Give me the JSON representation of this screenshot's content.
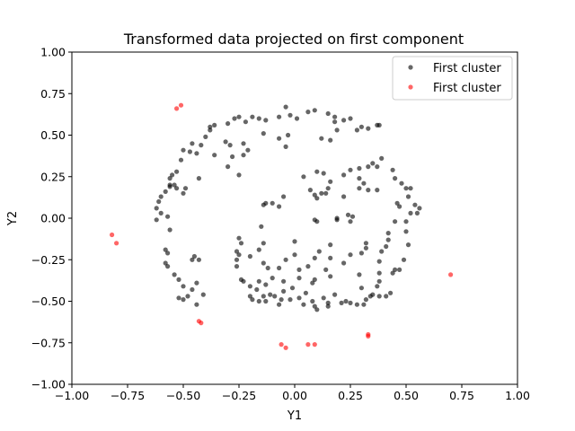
{
  "chart_data": {
    "type": "scatter",
    "title": "Transformed data projected on first component",
    "xlabel": "Y1",
    "ylabel": "Y2",
    "xlim": [
      -1.0,
      1.0
    ],
    "ylim": [
      -1.0,
      1.0
    ],
    "xticks": [
      "−1.00",
      "−0.75",
      "−0.50",
      "−0.25",
      "0.00",
      "0.25",
      "0.50",
      "0.75",
      "1.00"
    ],
    "yticks": [
      "−1.00",
      "−0.75",
      "−0.50",
      "−0.25",
      "0.00",
      "0.25",
      "0.50",
      "0.75",
      "1.00"
    ],
    "grid": false,
    "legend": "top-right",
    "series": [
      {
        "name": "First cluster",
        "color": "#000000",
        "points": [
          [
            -0.3,
            0.57
          ],
          [
            -0.27,
            0.6
          ],
          [
            -0.25,
            0.61
          ],
          [
            -0.22,
            0.58
          ],
          [
            -0.19,
            0.61
          ],
          [
            -0.16,
            0.6
          ],
          [
            -0.13,
            0.59
          ],
          [
            -0.07,
            0.61
          ],
          [
            -0.04,
            0.67
          ],
          [
            -0.02,
            0.62
          ],
          [
            0.01,
            0.6
          ],
          [
            0.06,
            0.64
          ],
          [
            0.09,
            0.65
          ],
          [
            0.15,
            0.63
          ],
          [
            0.18,
            0.61
          ],
          [
            0.22,
            0.59
          ],
          [
            0.25,
            0.6
          ],
          [
            0.3,
            0.55
          ],
          [
            0.33,
            0.54
          ],
          [
            0.37,
            0.56
          ],
          [
            0.38,
            0.56
          ],
          [
            -0.36,
            0.56
          ],
          [
            -0.38,
            0.53
          ],
          [
            -0.4,
            0.49
          ],
          [
            -0.42,
            0.44
          ],
          [
            -0.44,
            0.39
          ],
          [
            -0.47,
            0.4
          ],
          [
            -0.5,
            0.41
          ],
          [
            -0.51,
            0.35
          ],
          [
            -0.53,
            0.28
          ],
          [
            -0.55,
            0.26
          ],
          [
            -0.56,
            0.19
          ],
          [
            -0.58,
            0.16
          ],
          [
            -0.6,
            0.13
          ],
          [
            -0.61,
            0.1
          ],
          [
            -0.62,
            0.06
          ],
          [
            -0.6,
            0.03
          ],
          [
            -0.57,
            0.01
          ],
          [
            -0.62,
            -0.01
          ],
          [
            -0.56,
            -0.07
          ],
          [
            -0.58,
            -0.19
          ],
          [
            -0.57,
            -0.21
          ],
          [
            -0.58,
            -0.27
          ],
          [
            -0.57,
            -0.29
          ],
          [
            -0.54,
            -0.34
          ],
          [
            -0.52,
            -0.37
          ],
          [
            -0.5,
            -0.41
          ],
          [
            -0.52,
            -0.48
          ],
          [
            -0.5,
            -0.49
          ],
          [
            -0.48,
            -0.47
          ],
          [
            -0.46,
            -0.43
          ],
          [
            -0.44,
            -0.39
          ],
          [
            -0.46,
            -0.25
          ],
          [
            -0.45,
            -0.23
          ],
          [
            -0.43,
            -0.25
          ],
          [
            -0.41,
            -0.46
          ],
          [
            -0.44,
            -0.52
          ],
          [
            -0.56,
            0.24
          ],
          [
            -0.56,
            0.2
          ],
          [
            -0.54,
            0.2
          ],
          [
            -0.53,
            0.18
          ],
          [
            -0.5,
            0.15
          ],
          [
            -0.49,
            0.18
          ],
          [
            -0.46,
            0.45
          ],
          [
            -0.43,
            0.24
          ],
          [
            -0.36,
            0.38
          ],
          [
            -0.31,
            0.46
          ],
          [
            -0.29,
            0.44
          ],
          [
            -0.23,
            0.45
          ],
          [
            -0.21,
            0.41
          ],
          [
            -0.28,
            0.37
          ],
          [
            -0.3,
            0.31
          ],
          [
            -0.25,
            0.26
          ],
          [
            -0.23,
            0.38
          ],
          [
            -0.38,
            0.55
          ],
          [
            -0.25,
            -0.12
          ],
          [
            -0.24,
            -0.15
          ],
          [
            -0.26,
            -0.2
          ],
          [
            -0.25,
            -0.22
          ],
          [
            -0.26,
            -0.25
          ],
          [
            -0.26,
            -0.29
          ],
          [
            -0.24,
            -0.37
          ],
          [
            -0.2,
            -0.41
          ],
          [
            -0.17,
            -0.43
          ],
          [
            -0.14,
            -0.47
          ],
          [
            -0.16,
            -0.38
          ],
          [
            -0.13,
            -0.4
          ],
          [
            -0.11,
            -0.46
          ],
          [
            -0.09,
            -0.47
          ],
          [
            -0.06,
            -0.49
          ],
          [
            -0.05,
            -0.44
          ],
          [
            -0.02,
            -0.49
          ],
          [
            0.02,
            -0.48
          ],
          [
            0.05,
            -0.45
          ],
          [
            0.08,
            -0.5
          ],
          [
            0.1,
            -0.55
          ],
          [
            0.13,
            -0.48
          ],
          [
            0.15,
            -0.53
          ],
          [
            0.18,
            -0.46
          ],
          [
            0.23,
            -0.5
          ],
          [
            0.28,
            -0.52
          ],
          [
            0.32,
            -0.49
          ],
          [
            0.35,
            -0.46
          ],
          [
            -0.23,
            -0.38
          ],
          [
            -0.2,
            -0.47
          ],
          [
            -0.19,
            -0.49
          ],
          [
            -0.16,
            -0.5
          ],
          [
            -0.13,
            -0.5
          ],
          [
            -0.07,
            -0.52
          ],
          [
            0.04,
            -0.52
          ],
          [
            0.09,
            -0.53
          ],
          [
            0.15,
            -0.51
          ],
          [
            0.21,
            -0.51
          ],
          [
            0.25,
            -0.51
          ],
          [
            0.31,
            -0.52
          ],
          [
            0.38,
            -0.47
          ],
          [
            0.41,
            -0.47
          ],
          [
            0.43,
            -0.45
          ],
          [
            0.45,
            -0.31
          ],
          [
            0.44,
            -0.33
          ],
          [
            0.47,
            -0.31
          ],
          [
            0.49,
            -0.25
          ],
          [
            0.51,
            -0.16
          ],
          [
            0.5,
            -0.08
          ],
          [
            0.5,
            -0.02
          ],
          [
            0.52,
            0.03
          ],
          [
            0.54,
            0.08
          ],
          [
            0.56,
            0.06
          ],
          [
            0.55,
            0.03
          ],
          [
            0.33,
            0.31
          ],
          [
            0.35,
            0.33
          ],
          [
            0.37,
            0.31
          ],
          [
            0.39,
            0.36
          ],
          [
            0.44,
            0.29
          ],
          [
            0.45,
            0.24
          ],
          [
            0.48,
            0.21
          ],
          [
            0.5,
            0.18
          ],
          [
            0.52,
            0.18
          ],
          [
            0.51,
            0.13
          ],
          [
            0.46,
            0.09
          ],
          [
            0.47,
            0.07
          ],
          [
            0.45,
            -0.02
          ],
          [
            0.42,
            -0.09
          ],
          [
            0.42,
            -0.13
          ],
          [
            0.41,
            -0.17
          ],
          [
            0.39,
            -0.2
          ],
          [
            0.38,
            -0.26
          ],
          [
            0.38,
            -0.33
          ],
          [
            0.38,
            -0.38
          ],
          [
            0.37,
            -0.41
          ],
          [
            0.34,
            -0.47
          ],
          [
            0.1,
            0.28
          ],
          [
            0.13,
            0.27
          ],
          [
            0.22,
            0.26
          ],
          [
            0.25,
            0.29
          ],
          [
            0.29,
            0.3
          ],
          [
            0.29,
            0.24
          ],
          [
            0.16,
            0.22
          ],
          [
            0.15,
            0.18
          ],
          [
            0.12,
            0.15
          ],
          [
            0.09,
            0.14
          ],
          [
            0.07,
            0.17
          ],
          [
            0.04,
            0.25
          ],
          [
            0.1,
            0.12
          ],
          [
            0.14,
            0.15
          ],
          [
            0.22,
            0.13
          ],
          [
            0.29,
            0.18
          ],
          [
            0.31,
            0.21
          ],
          [
            0.33,
            0.17
          ],
          [
            0.37,
            0.17
          ],
          [
            0.1,
            -0.02
          ],
          [
            0.09,
            -0.01
          ],
          [
            0.19,
            -0.01
          ],
          [
            0.19,
            0.0
          ],
          [
            0.24,
            0.02
          ],
          [
            0.25,
            -0.02
          ],
          [
            0.26,
            0.01
          ],
          [
            0.32,
            -0.15
          ],
          [
            0.32,
            -0.18
          ],
          [
            0.3,
            -0.21
          ],
          [
            0.16,
            -0.16
          ],
          [
            0.09,
            -0.24
          ],
          [
            0.06,
            -0.29
          ],
          [
            0.02,
            -0.31
          ],
          [
            0.02,
            -0.36
          ],
          [
            -0.01,
            -0.42
          ],
          [
            0.0,
            -0.14
          ],
          [
            0.0,
            -0.22
          ],
          [
            -0.04,
            -0.25
          ],
          [
            -0.07,
            -0.3
          ],
          [
            -0.12,
            -0.3
          ],
          [
            -0.14,
            -0.27
          ],
          [
            -0.1,
            -0.36
          ],
          [
            -0.05,
            -0.38
          ],
          [
            0.09,
            -0.37
          ],
          [
            0.08,
            -0.39
          ],
          [
            0.14,
            -0.31
          ],
          [
            0.16,
            -0.35
          ],
          [
            0.22,
            -0.27
          ],
          [
            0.25,
            -0.22
          ],
          [
            0.29,
            -0.34
          ],
          [
            0.3,
            -0.42
          ],
          [
            0.16,
            -0.24
          ],
          [
            0.11,
            -0.2
          ],
          [
            -0.14,
            -0.15
          ],
          [
            -0.16,
            -0.19
          ],
          [
            -0.2,
            -0.23
          ],
          [
            -0.07,
            0.48
          ],
          [
            -0.04,
            0.43
          ],
          [
            -0.14,
            0.51
          ],
          [
            -0.03,
            0.5
          ],
          [
            0.16,
            0.47
          ],
          [
            0.12,
            0.48
          ],
          [
            0.19,
            0.53
          ],
          [
            0.28,
            0.53
          ],
          [
            0.18,
            0.58
          ],
          [
            -0.15,
            -0.05
          ],
          [
            -0.13,
            0.09
          ],
          [
            -0.14,
            0.08
          ],
          [
            -0.1,
            0.09
          ],
          [
            -0.07,
            0.07
          ],
          [
            -0.05,
            0.13
          ]
        ]
      },
      {
        "name": "First cluster",
        "color": "#ff0000",
        "points": [
          [
            -0.53,
            0.66
          ],
          [
            -0.51,
            0.68
          ],
          [
            -0.82,
            -0.1
          ],
          [
            -0.8,
            -0.15
          ],
          [
            -0.43,
            -0.62
          ],
          [
            -0.42,
            -0.63
          ],
          [
            -0.06,
            -0.76
          ],
          [
            -0.04,
            -0.78
          ],
          [
            0.06,
            -0.76
          ],
          [
            0.09,
            -0.76
          ],
          [
            0.33,
            -0.7
          ],
          [
            0.33,
            -0.71
          ],
          [
            0.7,
            -0.34
          ]
        ]
      }
    ]
  }
}
